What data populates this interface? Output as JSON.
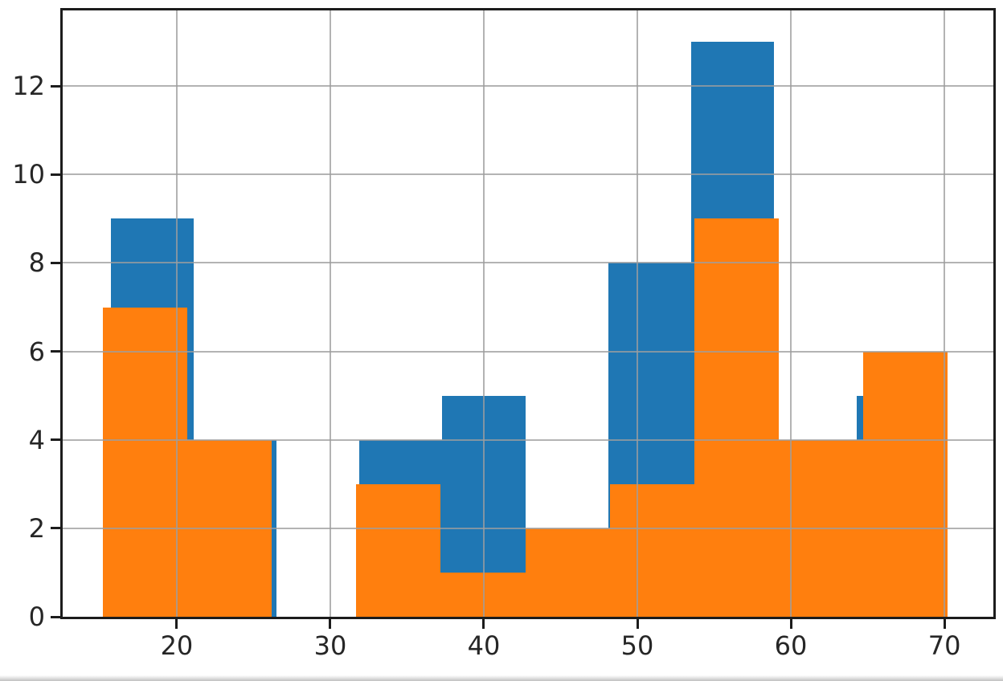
{
  "figure": {
    "background": "#ffffff",
    "title": "",
    "legend": "none"
  },
  "chart_data": {
    "type": "bar",
    "subtype": "histogram-overlaid",
    "title": "",
    "xlabel": "",
    "ylabel": "",
    "xlim": [
      12.57,
      73.19
    ],
    "ylim": [
      0,
      13.71
    ],
    "xticks": [
      20,
      30,
      40,
      50,
      60,
      70
    ],
    "yticks": [
      0,
      2,
      4,
      6,
      8,
      10,
      12
    ],
    "grid": "on",
    "grid_over_bars": true,
    "legend_position": "none",
    "series": [
      {
        "name": "blue-histogram",
        "color": "#1f77b4",
        "bin_edges": [
          15.7,
          21.1,
          26.5,
          31.9,
          37.3,
          42.7,
          48.1,
          53.5,
          58.9,
          64.3,
          69.7
        ],
        "counts": [
          9,
          4,
          0,
          4,
          5,
          0,
          8,
          13,
          0,
          5
        ]
      },
      {
        "name": "orange-histogram",
        "color": "#ff7f0e",
        "bin_edges": [
          15.2,
          20.7,
          26.2,
          31.7,
          37.2,
          42.7,
          48.2,
          53.7,
          59.2,
          64.7,
          70.2
        ],
        "counts": [
          7,
          4,
          0,
          3,
          1,
          2,
          3,
          9,
          4,
          6
        ]
      }
    ],
    "colors": {
      "grid": "#a0a0a0",
      "spine": "#1c1c1c",
      "tick_label": "#262626"
    }
  }
}
